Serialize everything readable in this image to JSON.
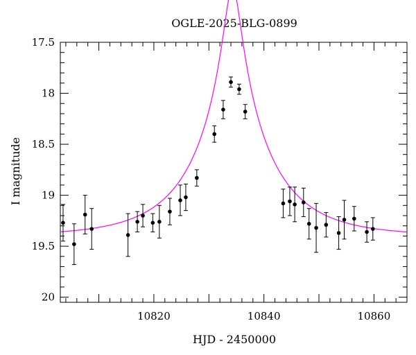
{
  "chart_data": {
    "type": "scatter",
    "title": "OGLE-2025-BLG-0899",
    "xlabel": "HJD - 2450000",
    "ylabel": "I magnitude",
    "xlim": [
      10803,
      10866
    ],
    "ylim": [
      17.5,
      20.05
    ],
    "y_inverted": true,
    "x_ticks": [
      10820,
      10840,
      10860
    ],
    "y_ticks": [
      "17.5",
      "18",
      "18.5",
      "19",
      "19.5",
      "20"
    ],
    "grid": false,
    "legend": "none",
    "series": [
      {
        "kind": "data",
        "marker": "filled-circle",
        "color": "#000000",
        "points": [
          {
            "x": 10803.5,
            "y": 19.27,
            "err": 0.18
          },
          {
            "x": 10805.5,
            "y": 19.48,
            "err": 0.2
          },
          {
            "x": 10807.5,
            "y": 19.19,
            "err": 0.19
          },
          {
            "x": 10808.7,
            "y": 19.33,
            "err": 0.2
          },
          {
            "x": 10815.3,
            "y": 19.39,
            "err": 0.21
          },
          {
            "x": 10817.0,
            "y": 19.26,
            "err": 0.1
          },
          {
            "x": 10818.0,
            "y": 19.2,
            "err": 0.11
          },
          {
            "x": 10819.8,
            "y": 19.27,
            "err": 0.09
          },
          {
            "x": 10821.0,
            "y": 19.26,
            "err": 0.16
          },
          {
            "x": 10822.9,
            "y": 19.16,
            "err": 0.13
          },
          {
            "x": 10824.8,
            "y": 19.05,
            "err": 0.15
          },
          {
            "x": 10825.8,
            "y": 19.02,
            "err": 0.13
          },
          {
            "x": 10827.8,
            "y": 18.83,
            "err": 0.08
          },
          {
            "x": 10831.0,
            "y": 18.4,
            "err": 0.08
          },
          {
            "x": 10832.6,
            "y": 18.16,
            "err": 0.09
          },
          {
            "x": 10834.0,
            "y": 17.89,
            "err": 0.05
          },
          {
            "x": 10835.5,
            "y": 17.96,
            "err": 0.05
          },
          {
            "x": 10836.6,
            "y": 18.18,
            "err": 0.07
          },
          {
            "x": 10843.5,
            "y": 19.08,
            "err": 0.14
          },
          {
            "x": 10844.7,
            "y": 19.06,
            "err": 0.14
          },
          {
            "x": 10845.6,
            "y": 19.09,
            "err": 0.17
          },
          {
            "x": 10847.2,
            "y": 19.07,
            "err": 0.14
          },
          {
            "x": 10848.2,
            "y": 19.28,
            "err": 0.15
          },
          {
            "x": 10849.5,
            "y": 19.32,
            "err": 0.24
          },
          {
            "x": 10851.3,
            "y": 19.29,
            "err": 0.12
          },
          {
            "x": 10853.6,
            "y": 19.37,
            "err": 0.16
          },
          {
            "x": 10854.6,
            "y": 19.24,
            "err": 0.19
          },
          {
            "x": 10856.4,
            "y": 19.23,
            "err": 0.12
          },
          {
            "x": 10858.7,
            "y": 19.36,
            "err": 0.1
          },
          {
            "x": 10859.8,
            "y": 19.33,
            "err": 0.11
          }
        ]
      },
      {
        "kind": "model",
        "color": "#ff00ff",
        "model": {
          "t0": 10834.3,
          "tE": 13.5,
          "u0": 0.106,
          "mag_base": 19.4
        }
      }
    ]
  }
}
